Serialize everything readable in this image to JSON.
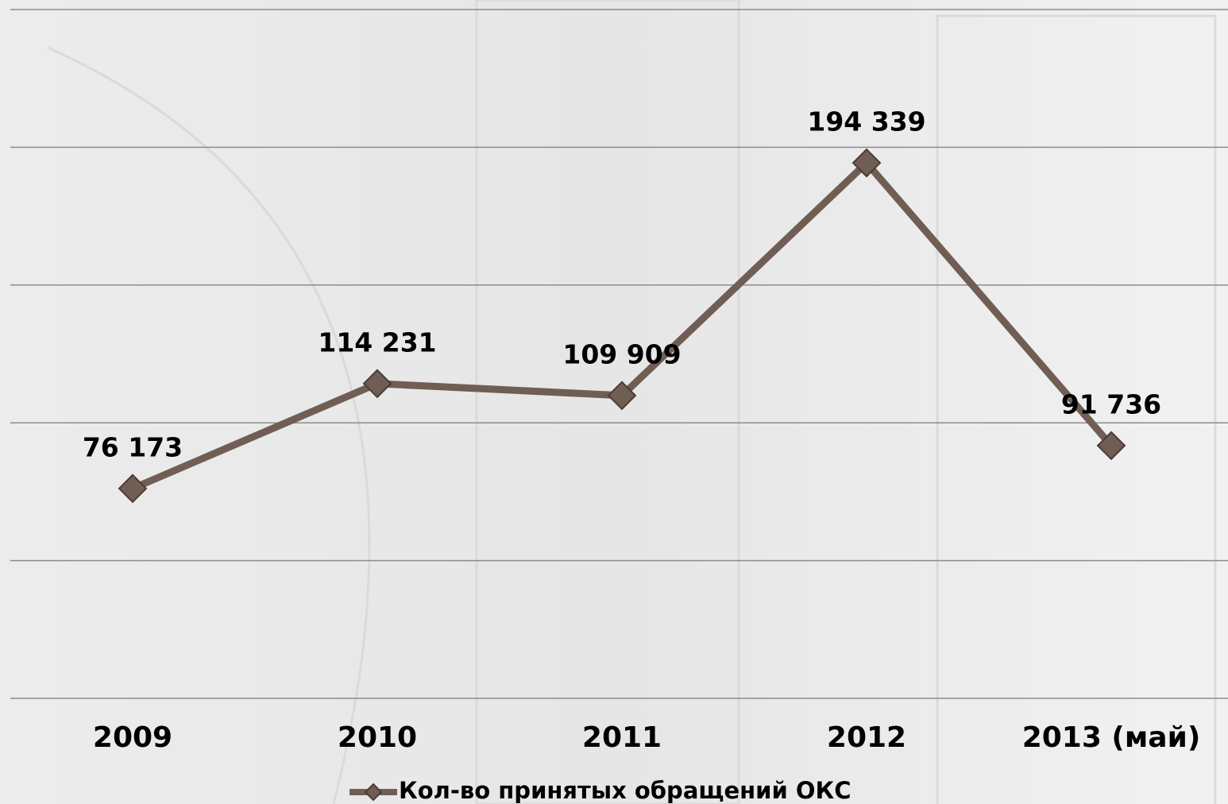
{
  "chart_data": {
    "type": "line",
    "categories": [
      "2009",
      "2010",
      "2011",
      "2012",
      "2013 (май)"
    ],
    "series": [
      {
        "name": "Кол-во принятых обращений ОКС",
        "color": "#705e54",
        "values": [
          76173,
          114231,
          109909,
          194339,
          91736
        ],
        "value_labels": [
          "76 173",
          "114 231",
          "109 909",
          "194 339",
          "91 736"
        ]
      }
    ],
    "ylim": [
      0,
      250000
    ],
    "yticks": [
      0,
      50000,
      100000,
      150000,
      200000,
      250000
    ],
    "grid": true,
    "legend": "bottom"
  }
}
